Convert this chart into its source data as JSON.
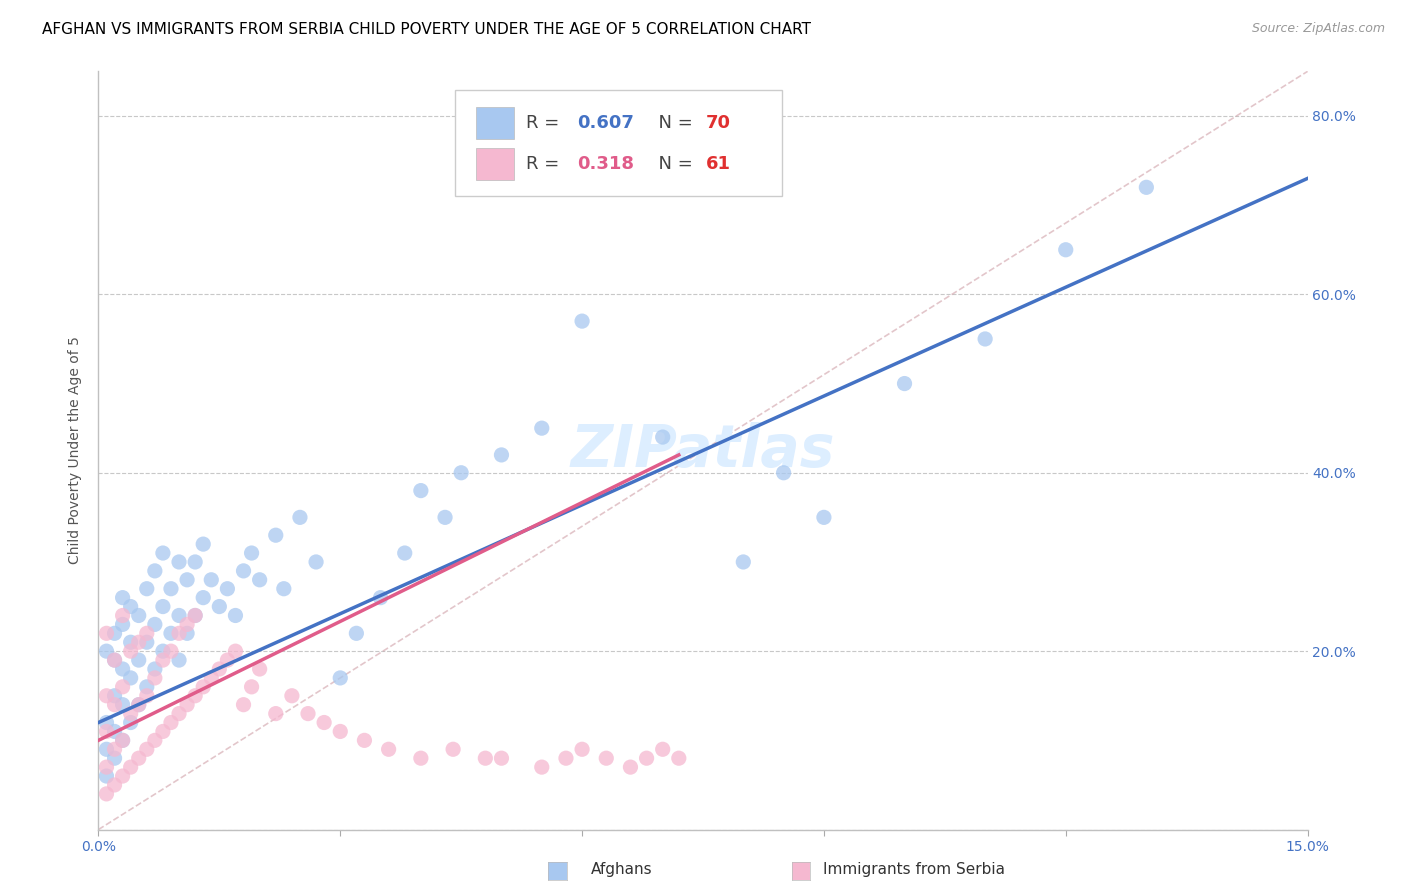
{
  "title": "AFGHAN VS IMMIGRANTS FROM SERBIA CHILD POVERTY UNDER THE AGE OF 5 CORRELATION CHART",
  "source": "Source: ZipAtlas.com",
  "ylabel": "Child Poverty Under the Age of 5",
  "xlim": [
    0.0,
    0.15
  ],
  "ylim": [
    0.0,
    0.85
  ],
  "x_ticks": [
    0.0,
    0.03,
    0.06,
    0.09,
    0.12,
    0.15
  ],
  "y_ticks": [
    0.0,
    0.2,
    0.4,
    0.6,
    0.8
  ],
  "color_afghan": "#A8C8F0",
  "color_serbia": "#F5B8D0",
  "color_trend_afghan": "#4472C4",
  "color_trend_serbia": "#E05C8A",
  "color_diagonal": "#D0A0A8",
  "background_color": "#FFFFFF",
  "watermark": "ZIPatlas",
  "watermark_color": "#DDEEFF",
  "afghan_scatter_x": [
    0.001,
    0.001,
    0.001,
    0.001,
    0.002,
    0.002,
    0.002,
    0.002,
    0.002,
    0.003,
    0.003,
    0.003,
    0.003,
    0.003,
    0.004,
    0.004,
    0.004,
    0.004,
    0.005,
    0.005,
    0.005,
    0.006,
    0.006,
    0.006,
    0.007,
    0.007,
    0.007,
    0.008,
    0.008,
    0.008,
    0.009,
    0.009,
    0.01,
    0.01,
    0.01,
    0.011,
    0.011,
    0.012,
    0.012,
    0.013,
    0.013,
    0.014,
    0.015,
    0.016,
    0.017,
    0.018,
    0.019,
    0.02,
    0.022,
    0.023,
    0.025,
    0.027,
    0.03,
    0.032,
    0.035,
    0.038,
    0.04,
    0.043,
    0.045,
    0.05,
    0.055,
    0.06,
    0.07,
    0.08,
    0.085,
    0.09,
    0.1,
    0.11,
    0.12,
    0.13
  ],
  "afghan_scatter_y": [
    0.06,
    0.09,
    0.12,
    0.2,
    0.08,
    0.11,
    0.15,
    0.19,
    0.22,
    0.1,
    0.14,
    0.18,
    0.23,
    0.26,
    0.12,
    0.17,
    0.21,
    0.25,
    0.14,
    0.19,
    0.24,
    0.16,
    0.21,
    0.27,
    0.18,
    0.23,
    0.29,
    0.2,
    0.25,
    0.31,
    0.22,
    0.27,
    0.19,
    0.24,
    0.3,
    0.22,
    0.28,
    0.24,
    0.3,
    0.26,
    0.32,
    0.28,
    0.25,
    0.27,
    0.24,
    0.29,
    0.31,
    0.28,
    0.33,
    0.27,
    0.35,
    0.3,
    0.17,
    0.22,
    0.26,
    0.31,
    0.38,
    0.35,
    0.4,
    0.42,
    0.45,
    0.57,
    0.44,
    0.3,
    0.4,
    0.35,
    0.5,
    0.55,
    0.65,
    0.72
  ],
  "serbia_scatter_x": [
    0.001,
    0.001,
    0.001,
    0.001,
    0.001,
    0.002,
    0.002,
    0.002,
    0.002,
    0.003,
    0.003,
    0.003,
    0.003,
    0.004,
    0.004,
    0.004,
    0.005,
    0.005,
    0.005,
    0.006,
    0.006,
    0.006,
    0.007,
    0.007,
    0.008,
    0.008,
    0.009,
    0.009,
    0.01,
    0.01,
    0.011,
    0.011,
    0.012,
    0.012,
    0.013,
    0.014,
    0.015,
    0.016,
    0.017,
    0.018,
    0.019,
    0.02,
    0.022,
    0.024,
    0.026,
    0.028,
    0.03,
    0.033,
    0.036,
    0.04,
    0.044,
    0.048,
    0.05,
    0.055,
    0.058,
    0.06,
    0.063,
    0.066,
    0.068,
    0.07,
    0.072
  ],
  "serbia_scatter_y": [
    0.04,
    0.07,
    0.11,
    0.15,
    0.22,
    0.05,
    0.09,
    0.14,
    0.19,
    0.06,
    0.1,
    0.16,
    0.24,
    0.07,
    0.13,
    0.2,
    0.08,
    0.14,
    0.21,
    0.09,
    0.15,
    0.22,
    0.1,
    0.17,
    0.11,
    0.19,
    0.12,
    0.2,
    0.13,
    0.22,
    0.14,
    0.23,
    0.15,
    0.24,
    0.16,
    0.17,
    0.18,
    0.19,
    0.2,
    0.14,
    0.16,
    0.18,
    0.13,
    0.15,
    0.13,
    0.12,
    0.11,
    0.1,
    0.09,
    0.08,
    0.09,
    0.08,
    0.08,
    0.07,
    0.08,
    0.09,
    0.08,
    0.07,
    0.08,
    0.09,
    0.08
  ],
  "serbia_trend_x_start": 0.0,
  "serbia_trend_x_end": 0.072,
  "title_fontsize": 11,
  "axis_label_fontsize": 10,
  "tick_fontsize": 10,
  "watermark_fontsize": 42,
  "source_fontsize": 9
}
